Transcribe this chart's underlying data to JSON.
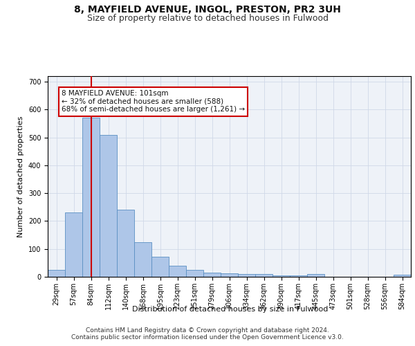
{
  "title_line1": "8, MAYFIELD AVENUE, INGOL, PRESTON, PR2 3UH",
  "title_line2": "Size of property relative to detached houses in Fulwood",
  "xlabel": "Distribution of detached houses by size in Fulwood",
  "ylabel": "Number of detached properties",
  "categories": [
    "29sqm",
    "57sqm",
    "84sqm",
    "112sqm",
    "140sqm",
    "168sqm",
    "195sqm",
    "223sqm",
    "251sqm",
    "279sqm",
    "306sqm",
    "334sqm",
    "362sqm",
    "390sqm",
    "417sqm",
    "445sqm",
    "473sqm",
    "501sqm",
    "528sqm",
    "556sqm",
    "584sqm"
  ],
  "values": [
    25,
    230,
    570,
    510,
    240,
    125,
    72,
    40,
    25,
    15,
    13,
    10,
    10,
    5,
    5,
    10,
    0,
    0,
    0,
    0,
    7
  ],
  "bar_color": "#aec6e8",
  "bar_edge_color": "#5a8fc2",
  "highlight_bar_index": 2,
  "highlight_line_color": "#cc0000",
  "annotation_text": "8 MAYFIELD AVENUE: 101sqm\n← 32% of detached houses are smaller (588)\n68% of semi-detached houses are larger (1,261) →",
  "annotation_box_color": "#cc0000",
  "ylim": [
    0,
    720
  ],
  "yticks": [
    0,
    100,
    200,
    300,
    400,
    500,
    600,
    700
  ],
  "grid_color": "#d0d8e8",
  "background_color": "#eef2f8",
  "footer_line1": "Contains HM Land Registry data © Crown copyright and database right 2024.",
  "footer_line2": "Contains public sector information licensed under the Open Government Licence v3.0.",
  "title_fontsize": 10,
  "subtitle_fontsize": 9,
  "axis_label_fontsize": 8,
  "tick_fontsize": 7,
  "annotation_fontsize": 7.5,
  "footer_fontsize": 6.5
}
